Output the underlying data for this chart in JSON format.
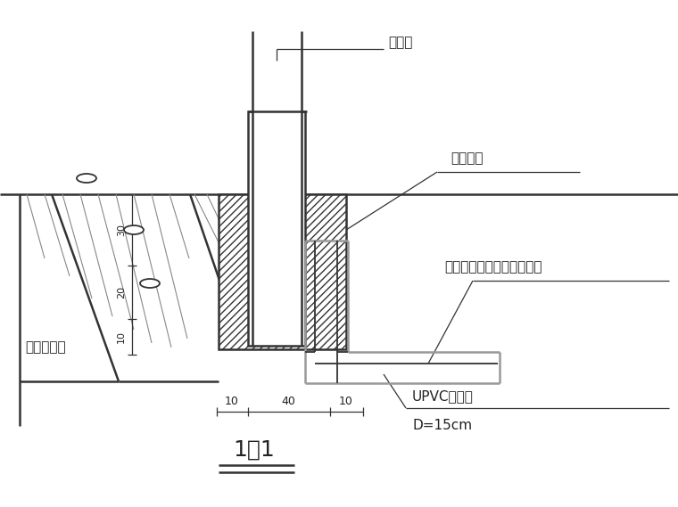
{
  "line_color": "#333333",
  "gray_color": "#999999",
  "text_color": "#222222",
  "label_zhishui": "池水管",
  "label_wanjie": "弯接头管",
  "label_upvc": "UPVC池水管",
  "label_d": "D=15cm",
  "label_zhuqi": "砖砂消能井",
  "label_yushui": "雨水管埋地就近接雨水系统",
  "label_11": "1－1",
  "dim_10a": "10",
  "dim_40": "40",
  "dim_10b": "10",
  "dim_10c": "10",
  "dim_20": "20",
  "dim_30": "30"
}
